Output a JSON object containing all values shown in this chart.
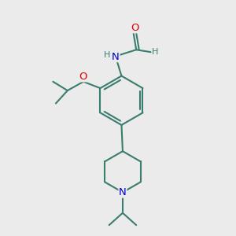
{
  "bg_color": "#ebebeb",
  "bond_color": "#3a7d6e",
  "bond_width": 1.5,
  "atom_colors": {
    "C": "#3a7d6e",
    "N": "#0000cc",
    "O": "#dd0000",
    "H": "#3a7d6e"
  },
  "font_size": 8.5,
  "fig_size": [
    3.0,
    3.0
  ],
  "dpi": 100
}
